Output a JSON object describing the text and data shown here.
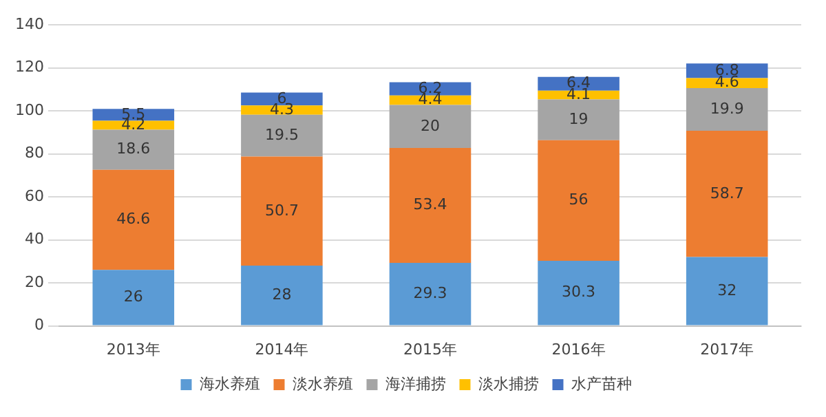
{
  "chart_data": {
    "type": "bar",
    "stacked": true,
    "categories": [
      "2013年",
      "2014年",
      "2015年",
      "2016年",
      "2017年"
    ],
    "series": [
      {
        "name": "海水养殖",
        "color": "#5b9bd5",
        "values": [
          26,
          28,
          29.3,
          30.3,
          32
        ]
      },
      {
        "name": "淡水养殖",
        "color": "#ed7d31",
        "values": [
          46.6,
          50.7,
          53.4,
          56,
          58.7
        ]
      },
      {
        "name": "海洋捕捞",
        "color": "#a5a5a5",
        "values": [
          18.6,
          19.5,
          20,
          19,
          19.9
        ]
      },
      {
        "name": "淡水捕捞",
        "color": "#ffc000",
        "values": [
          4.2,
          4.3,
          4.4,
          4.1,
          4.6
        ]
      },
      {
        "name": "水产苗种",
        "color": "#4472c4",
        "values": [
          5.5,
          6,
          6.2,
          6.4,
          6.8
        ]
      }
    ],
    "ylim": [
      0,
      140
    ],
    "yticks": [
      0,
      20,
      40,
      60,
      80,
      100,
      120,
      140
    ],
    "grid": "y",
    "legend": "bottom",
    "data_labels": true
  }
}
